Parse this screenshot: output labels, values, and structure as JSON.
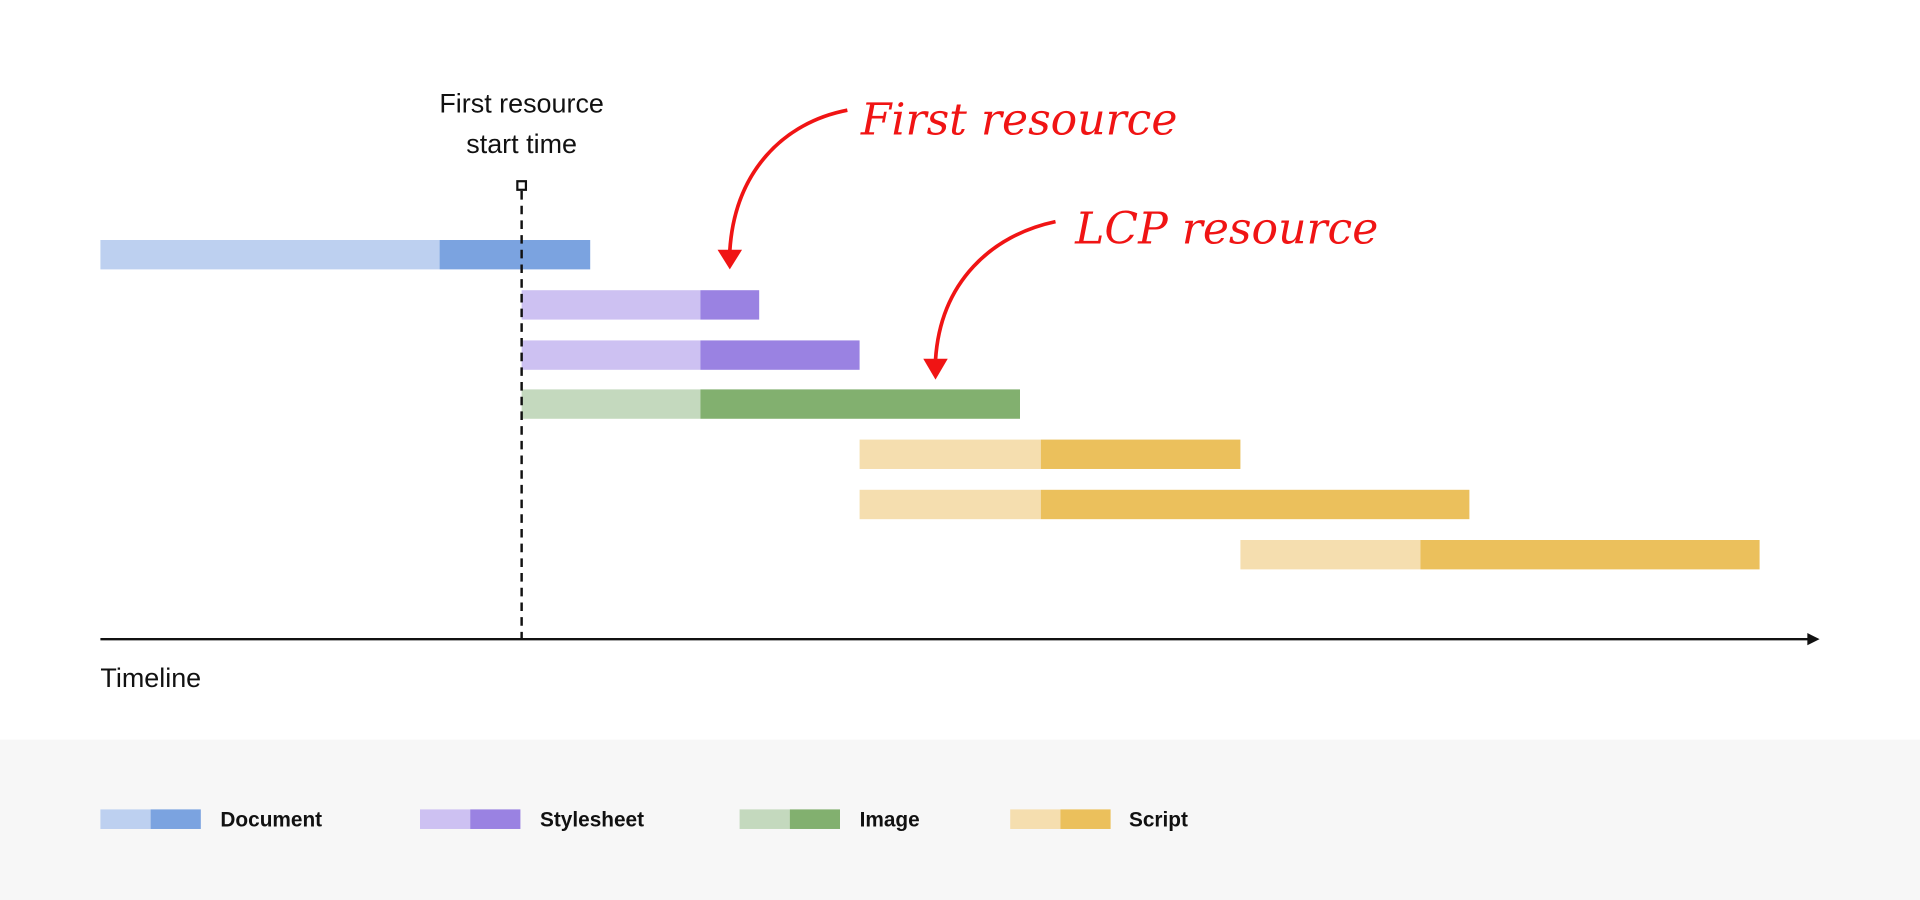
{
  "marker": {
    "lines": [
      "First resource",
      "start time"
    ]
  },
  "callouts": [
    "First resource",
    "LCP resource"
  ],
  "axis_label": "Timeline",
  "legend": [
    "Document",
    "Stylesheet",
    "Image",
    "Script"
  ]
}
